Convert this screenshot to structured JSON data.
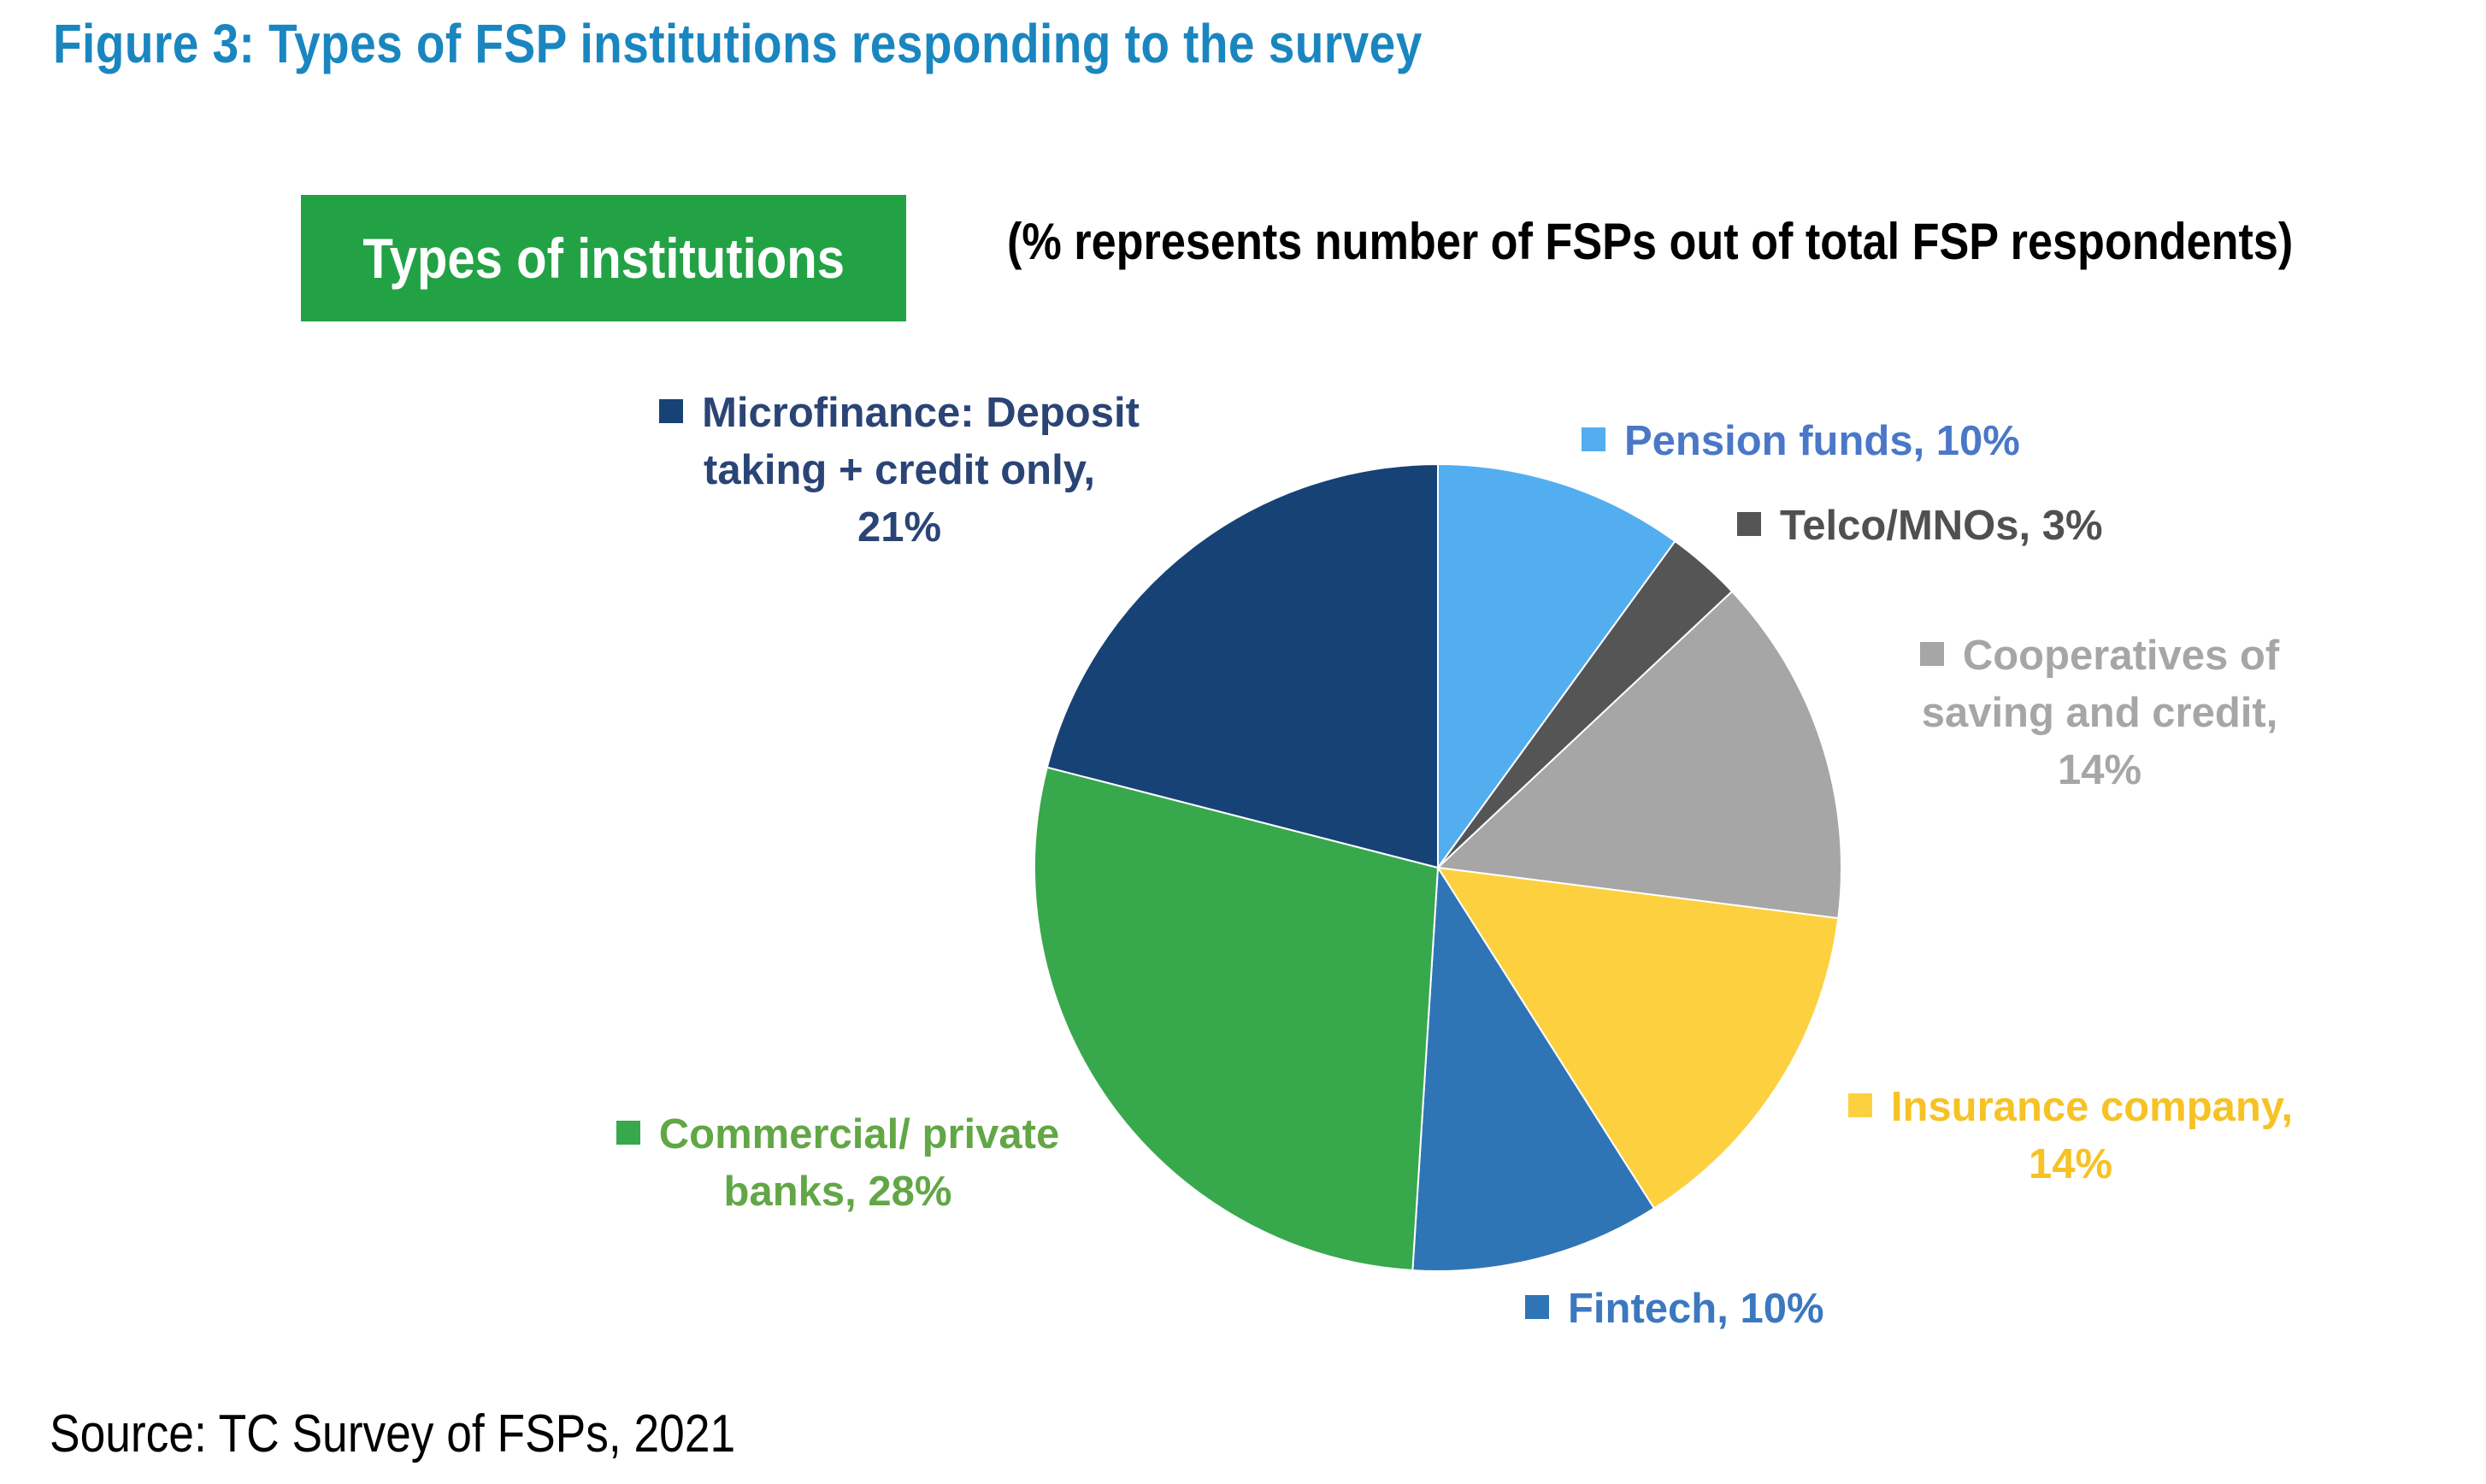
{
  "figure_title": "Figure 3: Types of FSP institutions responding to the survey",
  "badge_label": "Types of institutions",
  "subtitle": "(% represents number of FSPs out of total FSP respondents)",
  "source": "Source: TC Survey of FSPs, 2021",
  "colors": {
    "title": "#1a86c0",
    "badge_bg": "#22a245",
    "pension": "#53aef0",
    "telco": "#555555",
    "coop": "#a6a6a6",
    "insurance": "#fdd040",
    "fintech": "#2f75b6",
    "commercial": "#38a84c",
    "microfinance": "#174276"
  },
  "chart_data": {
    "type": "pie",
    "start_angle": "12 o'clock, clockwise",
    "legend": "labels next to slices",
    "slices": [
      {
        "key": "pension",
        "label_lines": [
          "Pension funds, 10%"
        ],
        "value": 10,
        "color": "#53aef0",
        "label_color": "#4a78c7"
      },
      {
        "key": "telco",
        "label_lines": [
          "Telco/MNOs, 3%"
        ],
        "value": 3,
        "color": "#555555",
        "label_color": "#505050"
      },
      {
        "key": "coop",
        "label_lines": [
          "Cooperatives of",
          "saving and credit,",
          "14%"
        ],
        "value": 14,
        "color": "#a6a6a6",
        "label_color": "#a6a6a6"
      },
      {
        "key": "insurance",
        "label_lines": [
          "Insurance company,",
          "14%"
        ],
        "value": 14,
        "color": "#fdd040",
        "label_color": "#f6c224"
      },
      {
        "key": "fintech",
        "label_lines": [
          "Fintech, 10%"
        ],
        "value": 10,
        "color": "#2f75b6",
        "label_color": "#3b78c0"
      },
      {
        "key": "commercial",
        "label_lines": [
          "Commercial/ private",
          "banks, 28%"
        ],
        "value": 28,
        "color": "#38a84c",
        "label_color": "#62a746"
      },
      {
        "key": "microfinance",
        "label_lines": [
          "Microfinance: Deposit",
          "taking + credit only,",
          "21%"
        ],
        "value": 21,
        "color": "#174276",
        "label_color": "#2a4476"
      }
    ]
  }
}
